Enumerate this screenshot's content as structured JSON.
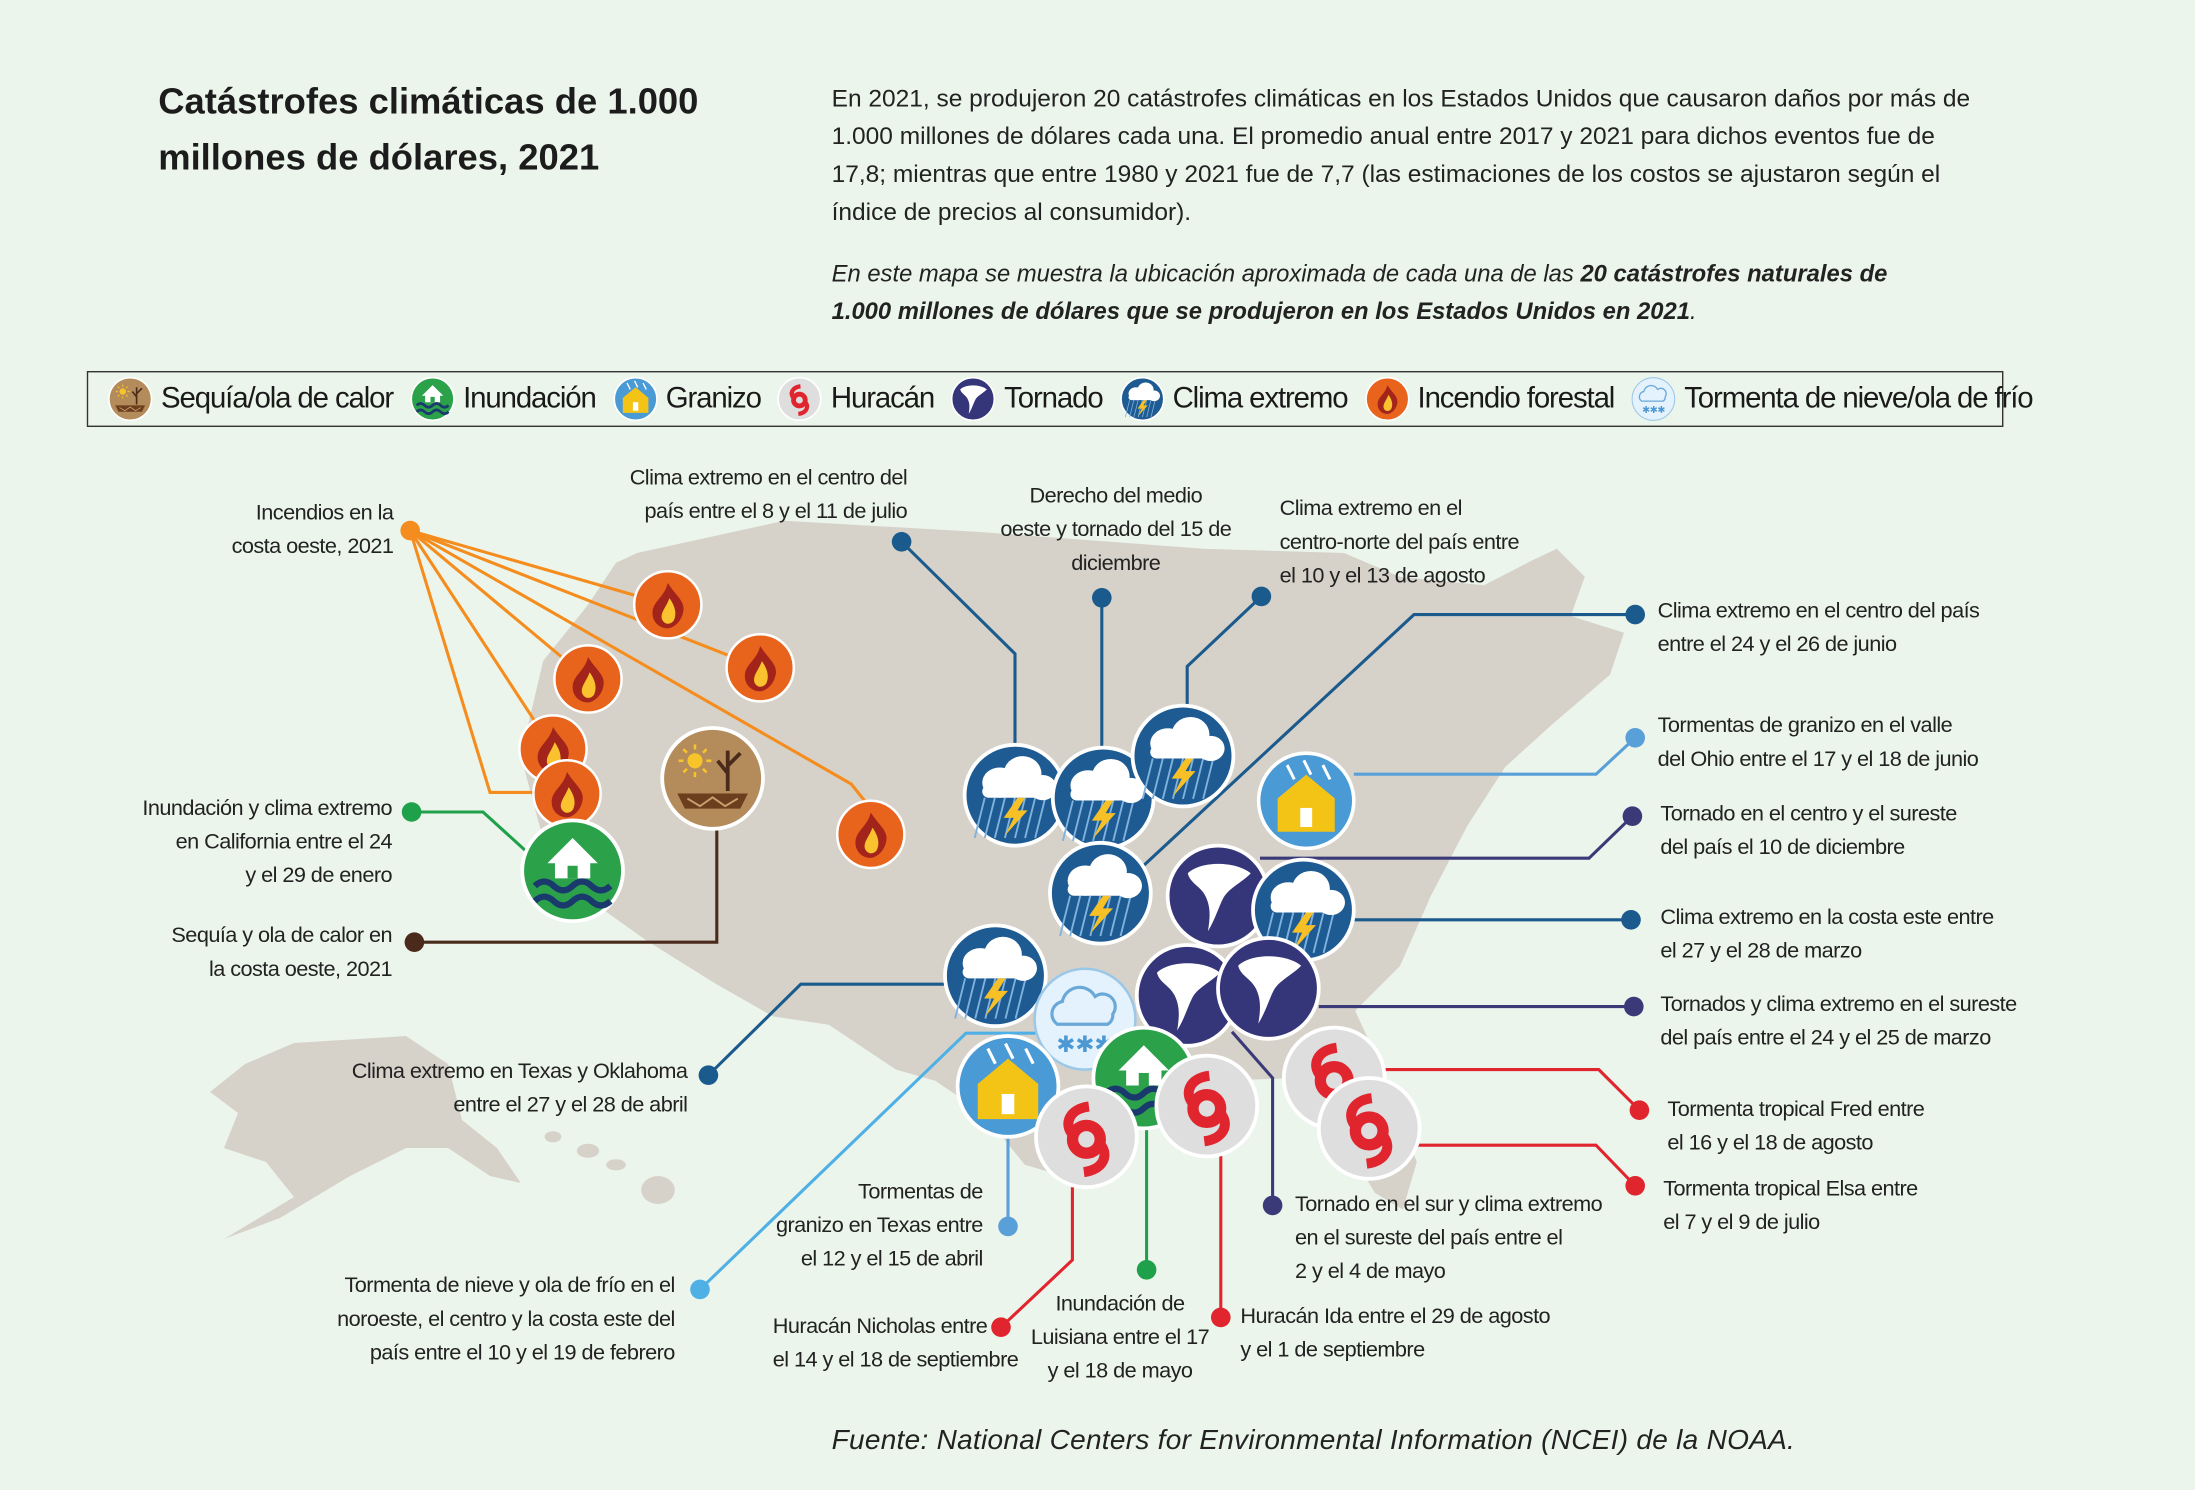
{
  "title": "Catástrofes climáticas de 1.000 millones de dólares, 2021",
  "intro": "En 2021, se produjeron 20 catástrofes climáticas en los Estados Unidos que causaron daños por más de 1.000 millones de dólares cada una. El promedio anual entre 2017 y 2021 para dichos eventos fue de 17,8; mientras que entre 1980 y 2021 fue de 7,7 (las estimaciones de los costos se ajustaron según el índice de precios al consumidor).",
  "map_note": {
    "part1": "En este mapa se muestra la ubicación aproximada de cada una de las ",
    "bold": "20 catástrofes naturales de 1.000 millones de dólares que se produjeron en los Estados Unidos en 2021",
    "part2": "."
  },
  "legend": [
    {
      "type": "drought",
      "label": "Sequía/ola de calor"
    },
    {
      "type": "flood",
      "label": "Inundación"
    },
    {
      "type": "hail",
      "label": "Granizo"
    },
    {
      "type": "hurricane",
      "label": "Huracán"
    },
    {
      "type": "tornado",
      "label": "Tornado"
    },
    {
      "type": "severe",
      "label": "Clima extremo"
    },
    {
      "type": "wildfire",
      "label": "Incendio forestal"
    },
    {
      "type": "winter",
      "label": "Tormenta de nieve/ola de frío"
    }
  ],
  "colors": {
    "wildfire": "#f58d1e",
    "flood": "#1fa04a",
    "drought": "#4a2a1a",
    "severe": "#1b5a8c",
    "hail": "#5aa0d8",
    "tornado": "#3b3a78",
    "hurricane": "#e0252e",
    "winter": "#4fb0e6",
    "land": "#d6d2c9",
    "background": "#ecf5ec"
  },
  "events": {
    "fires": "Incendios en la\ncosta oeste, 2021",
    "ca_flood": "Inundación y clima extremo\nen California entre el 24\ny el 29 de enero",
    "drought": "Sequía y ola de calor en\nla costa oeste, 2021",
    "severe_jul": "Clima extremo en el centro del\npaís entre el 8 y el 11 de julio",
    "derecho": "Derecho del medio\noeste y tornado del 15 de\ndiciembre",
    "severe_aug": "Clima extremo en el\ncentro-norte del país entre\nel 10 y el 13 de agosto",
    "severe_jun": "Clima extremo en el centro del país\nentre el 24 y el 26 de junio",
    "hail_ohio": "Tormentas de granizo en el valle\ndel Ohio entre el 17 y el 18 de junio",
    "tornado_dec": "Tornado en el centro y el sureste\ndel país el 10 de diciembre",
    "severe_mar": "Clima extremo en la costa este entre\nel 27 y el 28 de marzo",
    "tornado_mar": "Tornados y clima extremo en el sureste\ndel país entre el 24 y el 25 de marzo",
    "fred": "Tormenta tropical Fred entre\nel 16 y el 18 de agosto",
    "elsa": "Tormenta tropical Elsa entre\nel 7 y el 9 de julio",
    "tornado_may": "Tornado en el sur y clima extremo\nen el sureste del país entre el\n2 y el 4 de mayo",
    "ida": "Huracán Ida entre el 29 de agosto\ny el 1 de septiembre",
    "la_flood": "Inundación de\nLuisiana entre el 17\ny el 18 de mayo",
    "nicholas": "Huracán Nicholas entre\nel 14 y el 18 de septiembre",
    "hail_tx": "Tormentas de\ngranizo en Texas entre\nel 12 y el 15 de abril",
    "winter_feb": "Tormenta de nieve y ola de frío en el\nnoroeste, el centro y la costa este del\npaís entre el 10 y el 19 de febrero",
    "severe_apr": "Clima extremo en Texas y Oklahoma\nentre el 27 y el 28 de abril"
  },
  "source": "Fuente: National Centers for Environmental Information (NCEI) de la NOAA."
}
